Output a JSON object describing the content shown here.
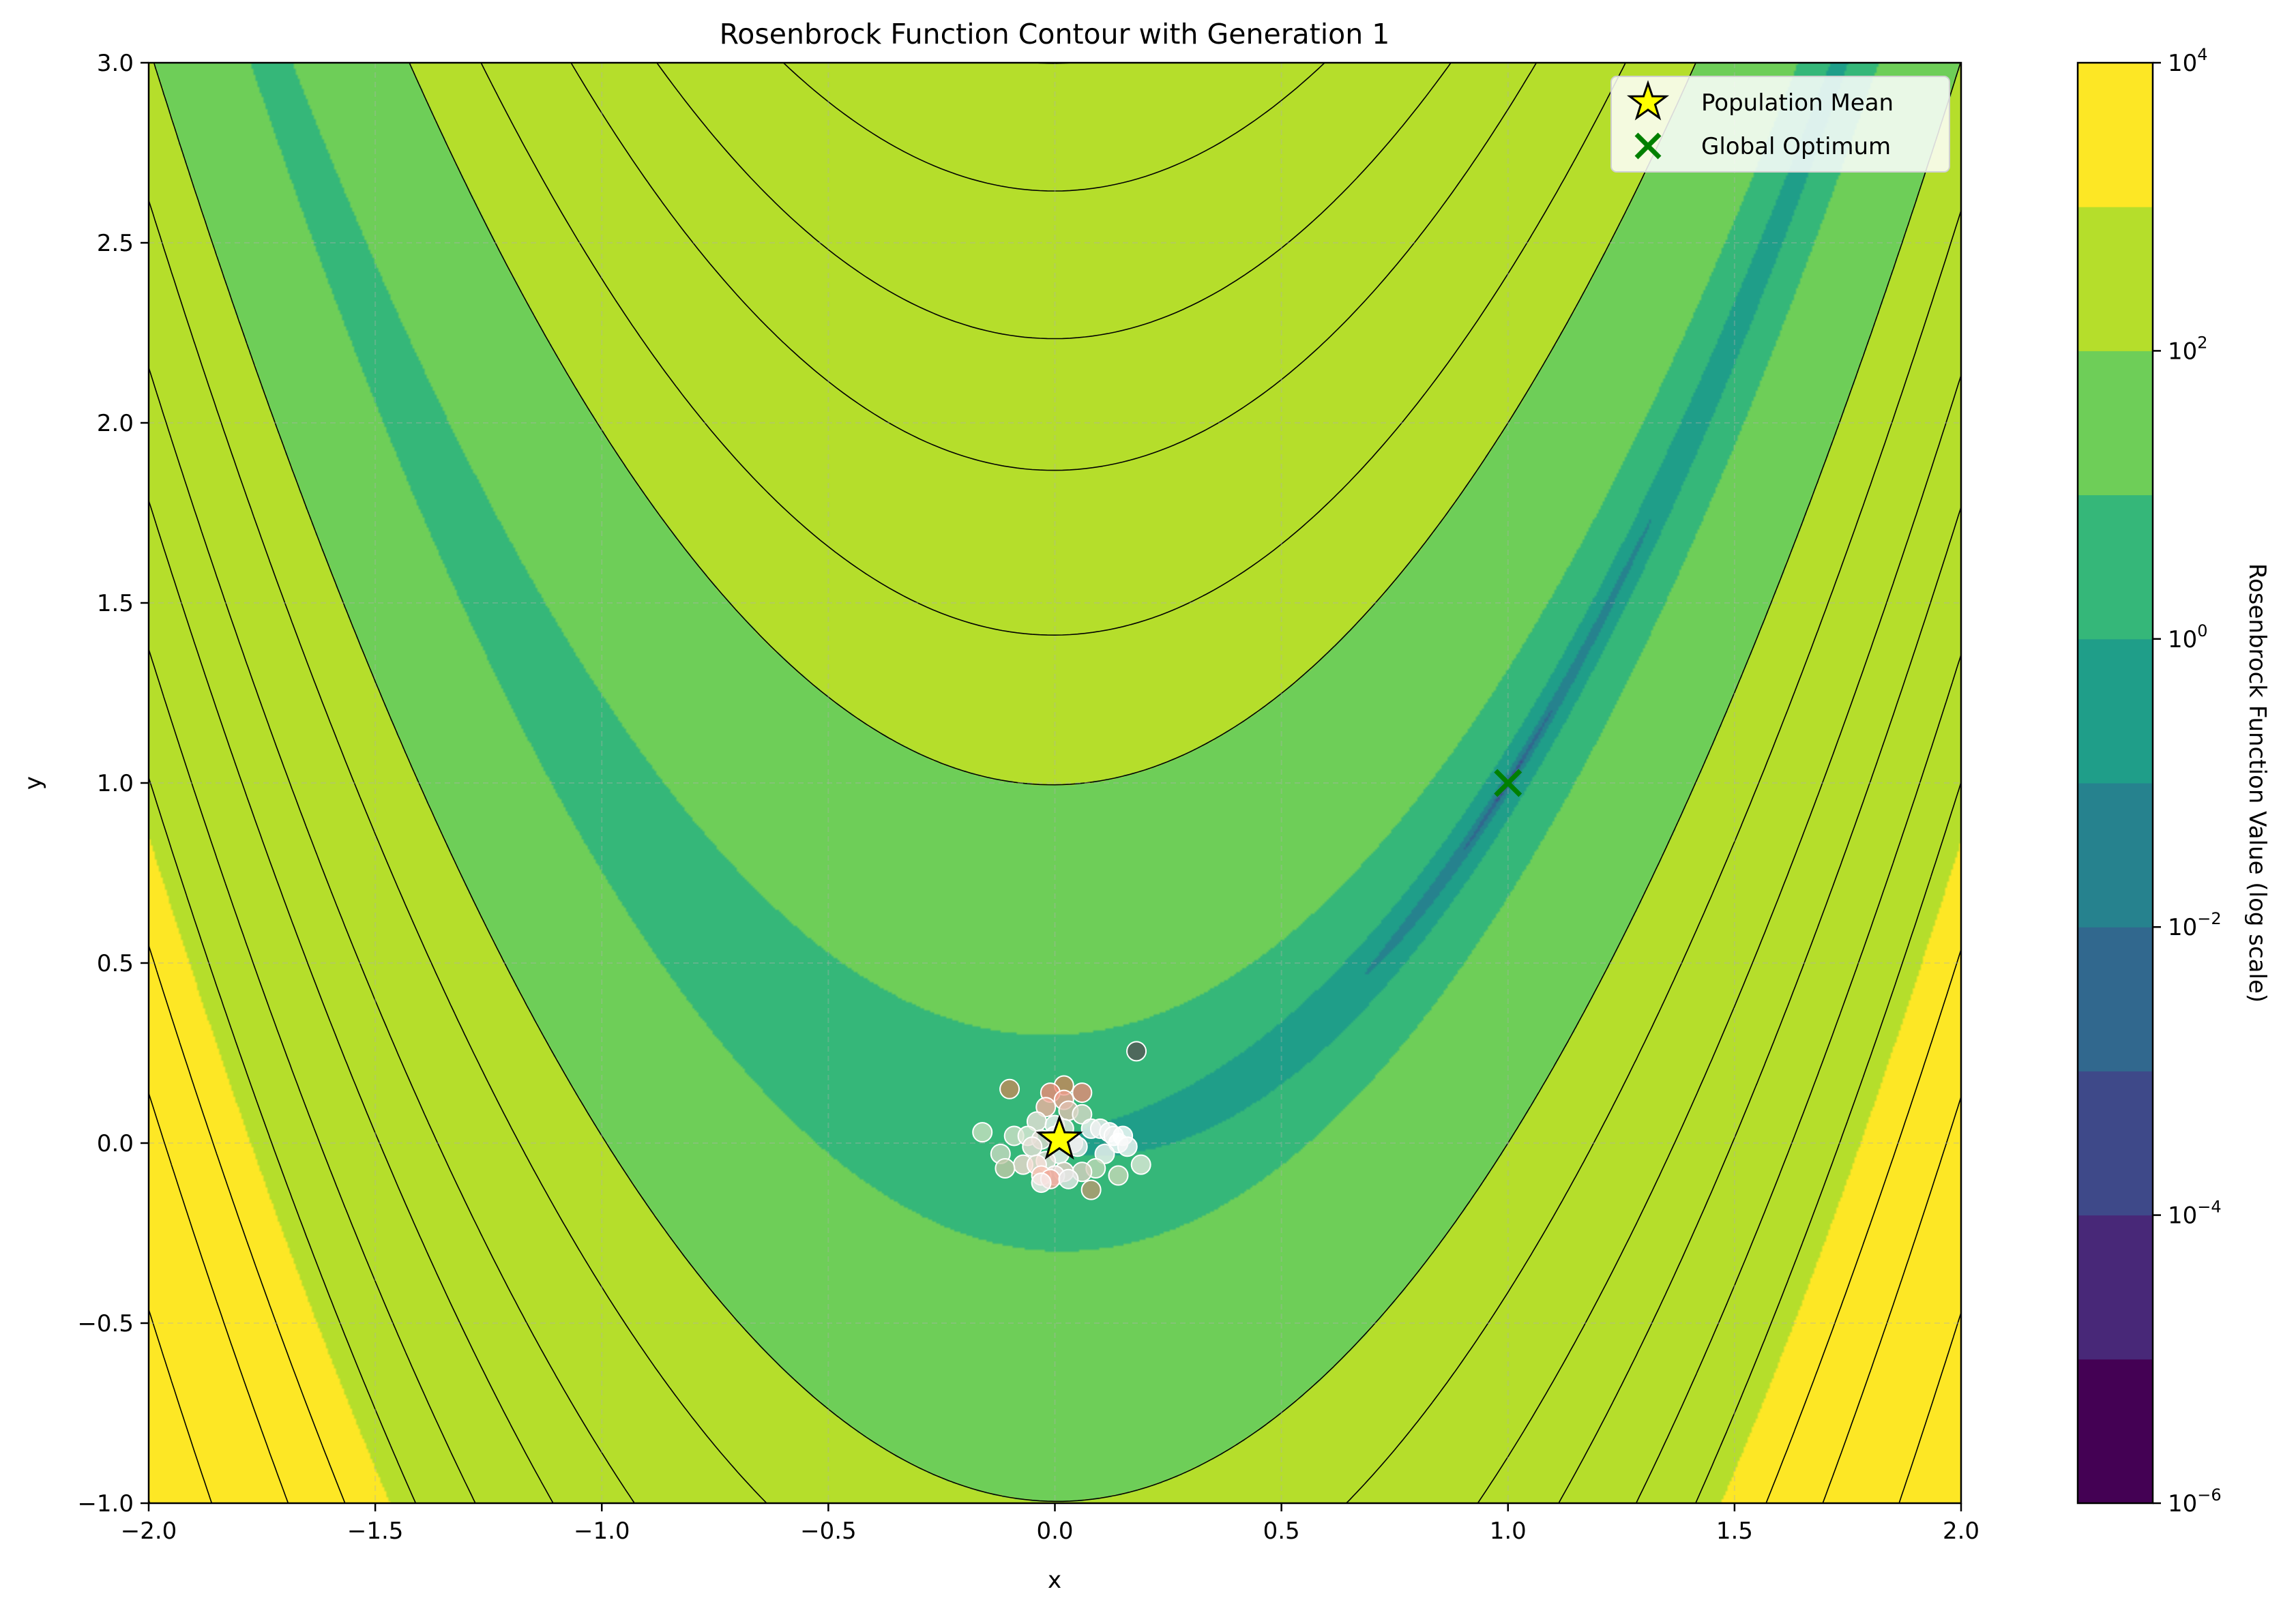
{
  "chart_data": {
    "type": "contour",
    "title": "Rosenbrock Function Contour with Generation 1",
    "xlabel": "x",
    "ylabel": "y",
    "xlim": [
      -2.0,
      2.0
    ],
    "ylim": [
      -1.0,
      3.0
    ],
    "xticks": [
      "−2.0",
      "−1.5",
      "−1.0",
      "−0.5",
      "0.0",
      "0.5",
      "1.0",
      "1.5",
      "2.0"
    ],
    "xtick_values": [
      -2.0,
      -1.5,
      -1.0,
      -0.5,
      0.0,
      0.5,
      1.0,
      1.5,
      2.0
    ],
    "yticks": [
      "−1.0",
      "−0.5",
      "0.0",
      "0.5",
      "1.0",
      "1.5",
      "2.0",
      "2.5",
      "3.0"
    ],
    "ytick_values": [
      -1.0,
      -0.5,
      0.0,
      0.5,
      1.0,
      1.5,
      2.0,
      2.5,
      3.0
    ],
    "grid": true,
    "colorbar": {
      "label": "Rosenbrock Function Value (log scale)",
      "scale": "log",
      "range_exponents": [
        -6,
        4
      ],
      "tick_exponents": [
        -6,
        -4,
        -2,
        0,
        2,
        4
      ],
      "tick_base": "10",
      "level_colors": [
        "#440154",
        "#482878",
        "#3e4989",
        "#31688e",
        "#26828e",
        "#1f9e89",
        "#35b779",
        "#6ece58",
        "#b5de2b",
        "#fde725"
      ]
    },
    "function": "Rosenbrock (1-x)^2 + 100(y-x^2)^2",
    "population": {
      "points": [
        [
          0.18,
          0.255
        ],
        [
          0.02,
          0.16
        ],
        [
          -0.1,
          0.15
        ],
        [
          0.06,
          0.14
        ],
        [
          -0.01,
          0.14
        ],
        [
          0.02,
          0.12
        ],
        [
          -0.02,
          0.1
        ],
        [
          0.03,
          0.09
        ],
        [
          0.06,
          0.08
        ],
        [
          -0.04,
          0.06
        ],
        [
          0.0,
          0.05
        ],
        [
          0.02,
          0.04
        ],
        [
          0.08,
          0.04
        ],
        [
          0.1,
          0.04
        ],
        [
          0.12,
          0.03
        ],
        [
          -0.16,
          0.03
        ],
        [
          -0.09,
          0.02
        ],
        [
          -0.06,
          0.02
        ],
        [
          0.13,
          0.02
        ],
        [
          0.15,
          0.02
        ],
        [
          0.0,
          0.02
        ],
        [
          -0.03,
          0.01
        ],
        [
          0.04,
          0.0
        ],
        [
          0.14,
          0.0
        ],
        [
          0.16,
          -0.01
        ],
        [
          -0.05,
          -0.01
        ],
        [
          0.05,
          -0.01
        ],
        [
          -0.12,
          -0.03
        ],
        [
          0.01,
          -0.03
        ],
        [
          0.11,
          -0.03
        ],
        [
          -0.02,
          -0.05
        ],
        [
          0.19,
          -0.06
        ],
        [
          -0.07,
          -0.06
        ],
        [
          -0.04,
          -0.06
        ],
        [
          0.09,
          -0.07
        ],
        [
          -0.11,
          -0.07
        ],
        [
          0.06,
          -0.08
        ],
        [
          0.02,
          -0.08
        ],
        [
          0.0,
          -0.09
        ],
        [
          -0.03,
          -0.09
        ],
        [
          0.14,
          -0.09
        ],
        [
          -0.01,
          -0.1
        ],
        [
          0.03,
          -0.1
        ],
        [
          -0.03,
          -0.11
        ],
        [
          0.08,
          -0.13
        ]
      ],
      "point_colors": [
        "#555555",
        "#c8865a",
        "#c08a5a",
        "#e88a78",
        "#f08878",
        "#f0a090",
        "#f0b0a0",
        "#e0c0b0",
        "#d8d8c8",
        "#e8e0d8",
        "#f0f0f0",
        "#e8e8e0",
        "#f4f4f4",
        "#f0f0f0",
        "#f8f8f8",
        "#c8e0c0",
        "#d0e0c8",
        "#e0e8d8",
        "#f0f0f0",
        "#ffffff",
        "#f4f4f4",
        "#e0d8d0",
        "#f0f0f0",
        "#ffffff",
        "#f8f8f8",
        "#e8e0d8",
        "#f0f0f0",
        "#c8d8c0",
        "#f0f0f0",
        "#f4f4f4",
        "#e8e0d8",
        "#e0e8d8",
        "#f0d8d0",
        "#f8e0d8",
        "#c0d8b8",
        "#c0c8a8",
        "#d8d0c0",
        "#e8d0c8",
        "#f0e0e0",
        "#f8c0b0",
        "#c8d8b8",
        "#f0a898",
        "#e8e8e8",
        "#f8f0f0",
        "#b89870"
      ]
    },
    "population_mean": {
      "x": 0.01,
      "y": 0.01,
      "color": "#ffff00"
    },
    "global_optimum": {
      "x": 1.0,
      "y": 1.0,
      "color": "#008000"
    },
    "legend": {
      "placement": "top-right",
      "entries": [
        {
          "label": "Population Mean",
          "marker": "star",
          "color": "#ffff00"
        },
        {
          "label": "Global Optimum",
          "marker": "x",
          "color": "#008000"
        }
      ]
    }
  }
}
